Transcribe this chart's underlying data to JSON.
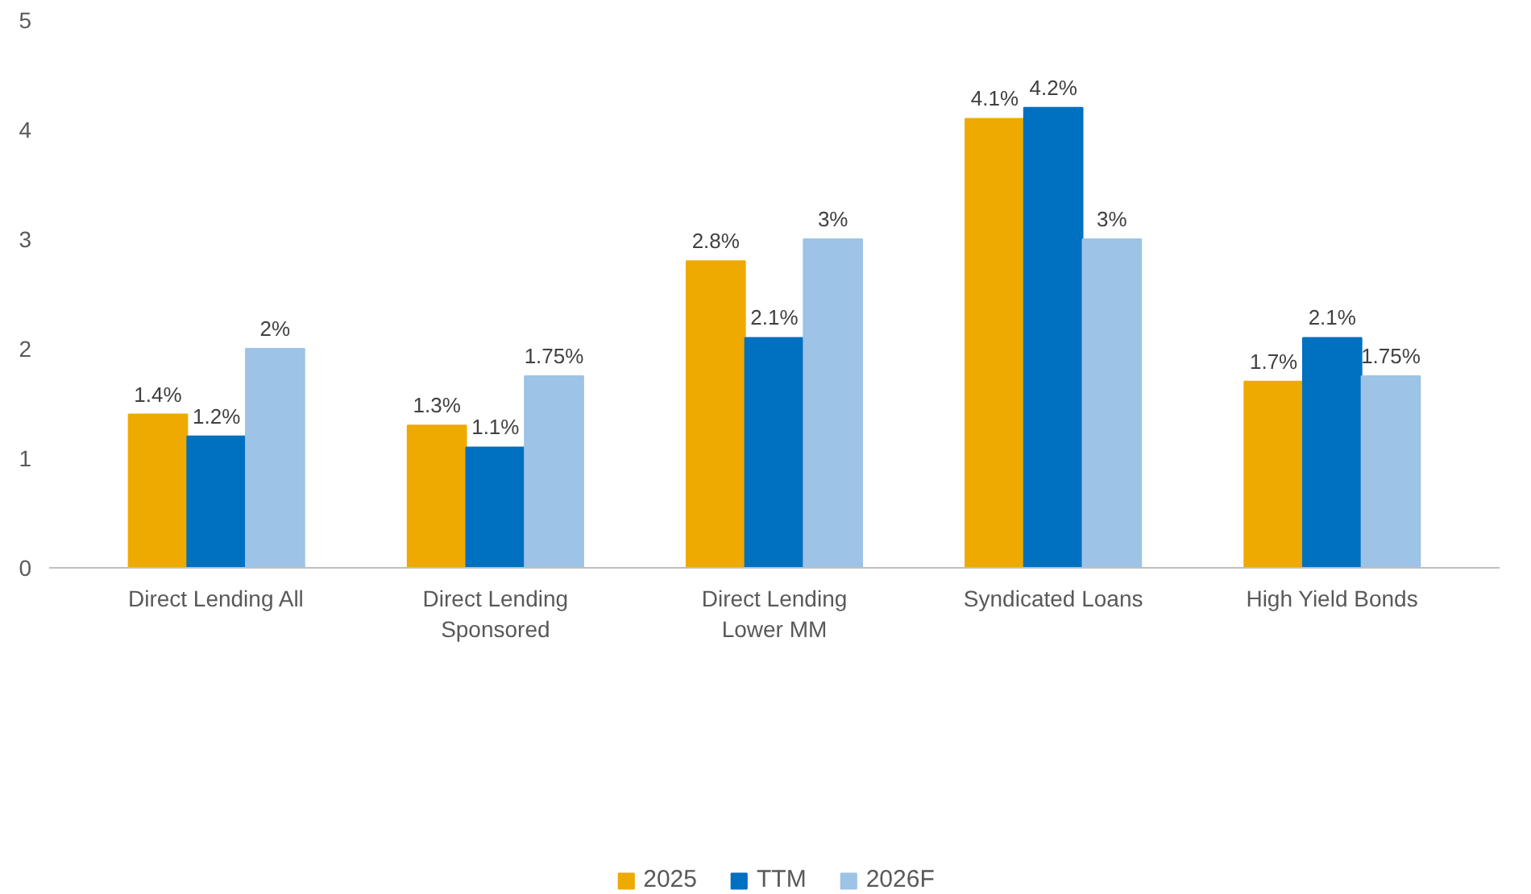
{
  "chart_data": {
    "type": "bar",
    "categories": [
      "Direct Lending All",
      "Direct Lending Sponsored",
      "Direct Lending Lower MM",
      "Syndicated Loans",
      "High Yield Bonds"
    ],
    "series": [
      {
        "name": "2025",
        "color": "#eeaa00",
        "values": [
          1.4,
          1.3,
          2.8,
          4.1,
          1.7
        ],
        "value_labels": [
          "1.4%",
          "1.3%",
          "2.8%",
          "4.1%",
          "1.7%"
        ]
      },
      {
        "name": "TTM",
        "color": "#0070c0",
        "values": [
          1.2,
          1.1,
          2.1,
          4.2,
          2.1
        ],
        "value_labels": [
          "1.2%",
          "1.1%",
          "2.1%",
          "4.2%",
          "2.1%"
        ]
      },
      {
        "name": "2026F",
        "color": "#9dc3e6",
        "values": [
          2,
          1.75,
          3,
          3,
          1.75
        ],
        "value_labels": [
          "2%",
          "1.75%",
          "3%",
          "3%",
          "1.75%"
        ]
      }
    ],
    "ylim": [
      0,
      5
    ],
    "yticks": [
      0,
      1,
      2,
      3,
      4,
      5
    ],
    "grid": false,
    "legend": "bottom"
  }
}
